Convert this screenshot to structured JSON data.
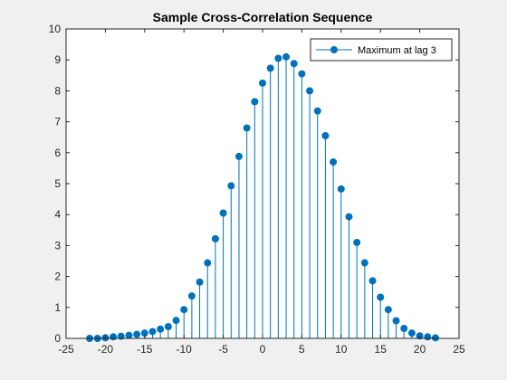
{
  "colors": {
    "series": "#0072BD",
    "axes": "#262626",
    "figure_bg": "#f0f0f0",
    "plot_bg": "#ffffff"
  },
  "chart_data": {
    "type": "stem",
    "title": "Sample Cross-Correlation Sequence",
    "xlabel": "",
    "ylabel": "",
    "xlim": [
      -25,
      25
    ],
    "ylim": [
      0,
      10
    ],
    "xticks": [
      -25,
      -20,
      -15,
      -10,
      -5,
      0,
      5,
      10,
      15,
      20,
      25
    ],
    "yticks": [
      0,
      1,
      2,
      3,
      4,
      5,
      6,
      7,
      8,
      9,
      10
    ],
    "grid": false,
    "legend": {
      "location": "top-right",
      "entries": [
        "Maximum at lag 3"
      ]
    },
    "series": [
      {
        "name": "Maximum at lag 3",
        "x": [
          -22,
          -21,
          -20,
          -19,
          -18,
          -17,
          -16,
          -15,
          -14,
          -13,
          -12,
          -11,
          -10,
          -9,
          -8,
          -7,
          -6,
          -5,
          -4,
          -3,
          -2,
          -1,
          0,
          1,
          2,
          3,
          4,
          5,
          6,
          7,
          8,
          9,
          10,
          11,
          12,
          13,
          14,
          15,
          16,
          17,
          18,
          19,
          20,
          21,
          22
        ],
        "y": [
          0.0,
          0.0,
          0.02,
          0.05,
          0.07,
          0.1,
          0.13,
          0.17,
          0.22,
          0.3,
          0.38,
          0.58,
          0.93,
          1.37,
          1.82,
          2.44,
          3.22,
          4.05,
          4.93,
          5.88,
          6.8,
          7.65,
          8.25,
          8.73,
          9.05,
          9.1,
          8.88,
          8.55,
          8.0,
          7.35,
          6.55,
          5.7,
          4.83,
          3.93,
          3.1,
          2.44,
          1.86,
          1.33,
          0.93,
          0.57,
          0.32,
          0.17,
          0.08,
          0.05,
          0.02
        ]
      }
    ]
  }
}
